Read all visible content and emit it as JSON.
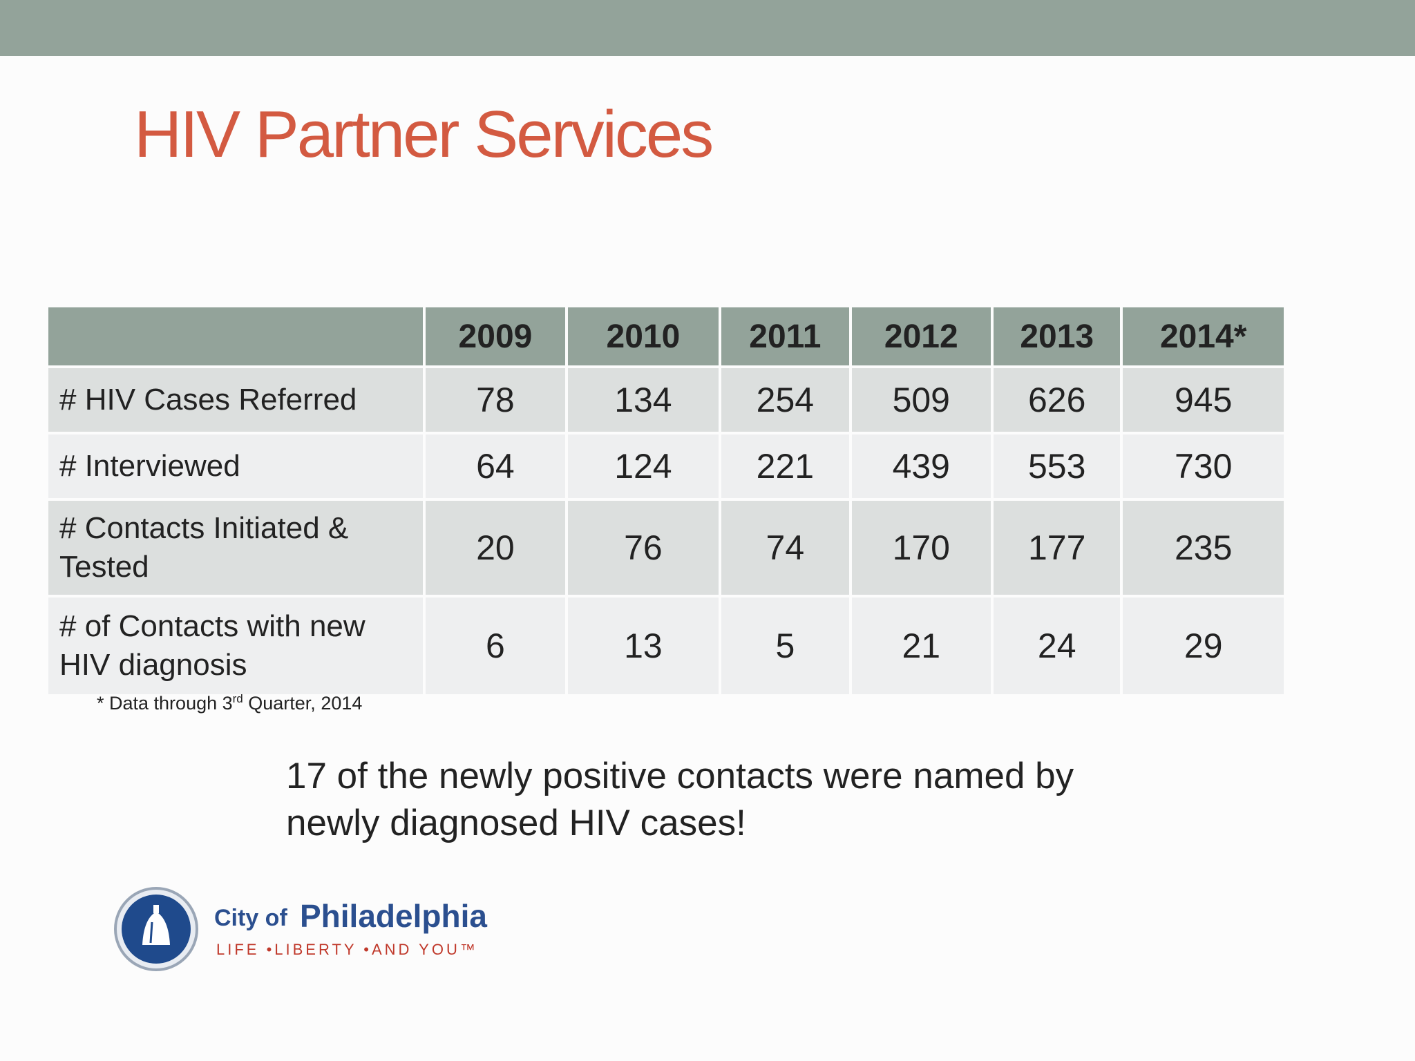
{
  "title": "HIV Partner Services",
  "table": {
    "columns": [
      "2009",
      "2010",
      "2011",
      "2012",
      "2013",
      "2014*"
    ],
    "rows": [
      {
        "label": "# HIV Cases Referred",
        "values": [
          78,
          134,
          254,
          509,
          626,
          945
        ]
      },
      {
        "label": "# Interviewed",
        "values": [
          64,
          124,
          221,
          439,
          553,
          730
        ]
      },
      {
        "label": "# Contacts Initiated & Tested",
        "values": [
          20,
          76,
          74,
          170,
          177,
          235
        ]
      },
      {
        "label": "# of Contacts with new HIV diagnosis",
        "values": [
          6,
          13,
          5,
          21,
          24,
          29
        ]
      }
    ]
  },
  "footnote": {
    "prefix": "* Data through 3",
    "superscript": "rd",
    "suffix": " Quarter, 2014"
  },
  "callout": "17 of the newly positive contacts were named by newly diagnosed HIV cases!",
  "logo": {
    "city_of": "City of",
    "name": "Philadelphia",
    "tagline": "LIFE •LIBERTY •AND YOU™"
  }
}
